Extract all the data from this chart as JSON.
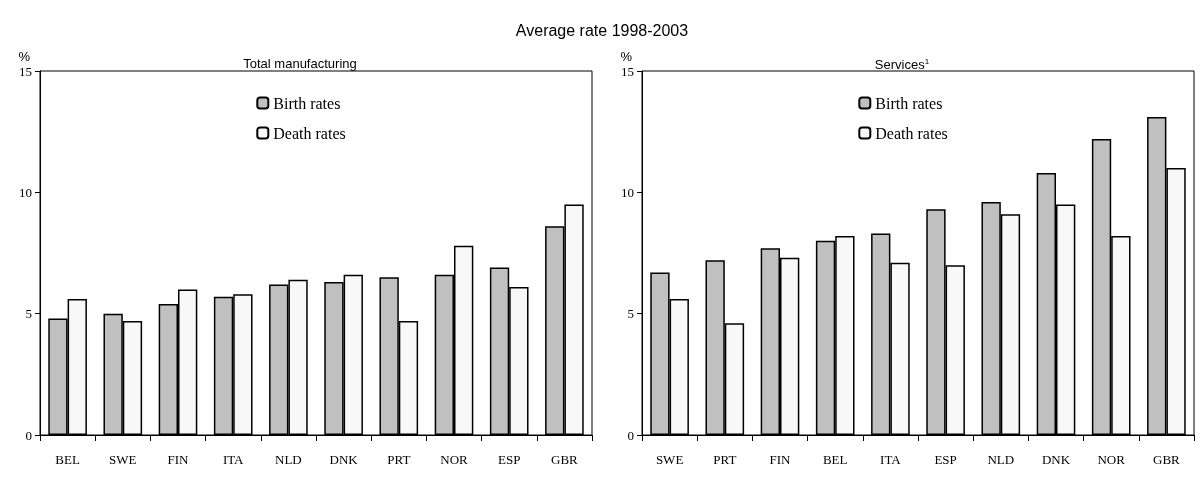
{
  "chart_data": [
    {
      "type": "bar",
      "title": "Total manufacturing",
      "ylabel": "%",
      "annotations": [
        "Average rate 1998-2003"
      ],
      "categories": [
        "BEL",
        "SWE",
        "FIN",
        "ITA",
        "NLD",
        "DNK",
        "PRT",
        "NOR",
        "ESP",
        "GBR"
      ],
      "series": [
        {
          "name": "Birth rates",
          "color": "#c0c0c0",
          "values": [
            4.8,
            5.0,
            5.4,
            5.7,
            6.2,
            6.3,
            6.5,
            6.6,
            6.9,
            8.6
          ]
        },
        {
          "name": "Death rates",
          "color": "#f8f8f8",
          "values": [
            5.6,
            4.7,
            6.0,
            5.8,
            6.4,
            6.6,
            4.7,
            7.8,
            6.1,
            9.5
          ]
        }
      ],
      "ylim": [
        0,
        15
      ],
      "yticks": [
        0,
        5,
        10,
        15
      ],
      "grid": false,
      "legend": "top"
    },
    {
      "type": "bar",
      "title": "Services$^{1}$",
      "ylabel": "%",
      "categories": [
        "SWE",
        "PRT",
        "FIN",
        "BEL",
        "ITA",
        "ESP",
        "NLD",
        "DNK",
        "NOR",
        "GBR"
      ],
      "series": [
        {
          "name": "Birth rates",
          "color": "#c0c0c0",
          "values": [
            6.7,
            7.2,
            7.7,
            8.0,
            8.3,
            9.3,
            9.6,
            10.8,
            12.2,
            13.1
          ]
        },
        {
          "name": "Death rates",
          "color": "#f8f8f8",
          "values": [
            5.6,
            4.6,
            7.3,
            8.2,
            7.1,
            7.0,
            9.1,
            9.5,
            8.2,
            11.0
          ]
        }
      ],
      "ylim": [
        0,
        15
      ],
      "yticks": [
        0,
        5,
        10,
        15
      ],
      "grid": false,
      "legend": "top"
    }
  ]
}
